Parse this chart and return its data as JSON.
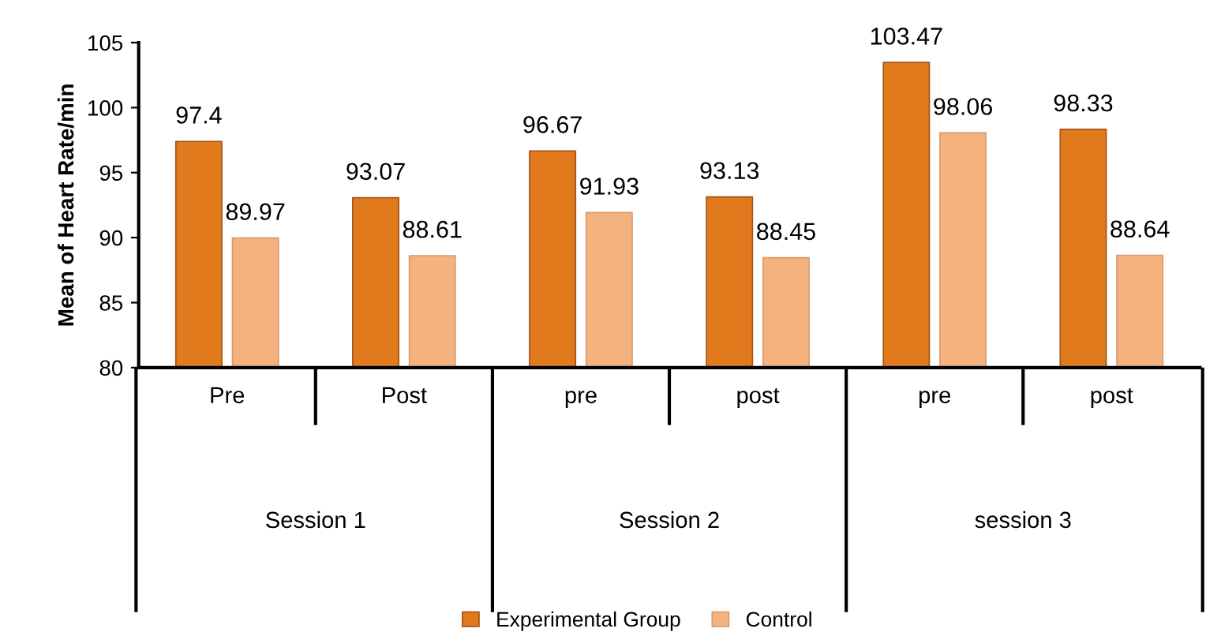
{
  "chart_data": {
    "type": "bar",
    "ylabel": "Mean of Heart Rate/min",
    "categories": [
      "Pre",
      "Post",
      "pre",
      "post",
      "pre",
      "post"
    ],
    "series": [
      {
        "name": "Experimental Group",
        "color": "#e07a1c",
        "values": [
          97.4,
          93.07,
          96.67,
          93.13,
          103.47,
          98.33
        ]
      },
      {
        "name": "Control",
        "color": "#f4b27e",
        "values": [
          89.97,
          88.61,
          91.93,
          88.45,
          98.06,
          88.64
        ]
      }
    ],
    "ylim": [
      80,
      105
    ],
    "yticks": [
      80,
      85,
      90,
      95,
      100,
      105
    ],
    "annotations": [
      "Session 1",
      "Session 2",
      "session 3"
    ],
    "data_labels": true,
    "grid": false,
    "legend": "bottom"
  }
}
